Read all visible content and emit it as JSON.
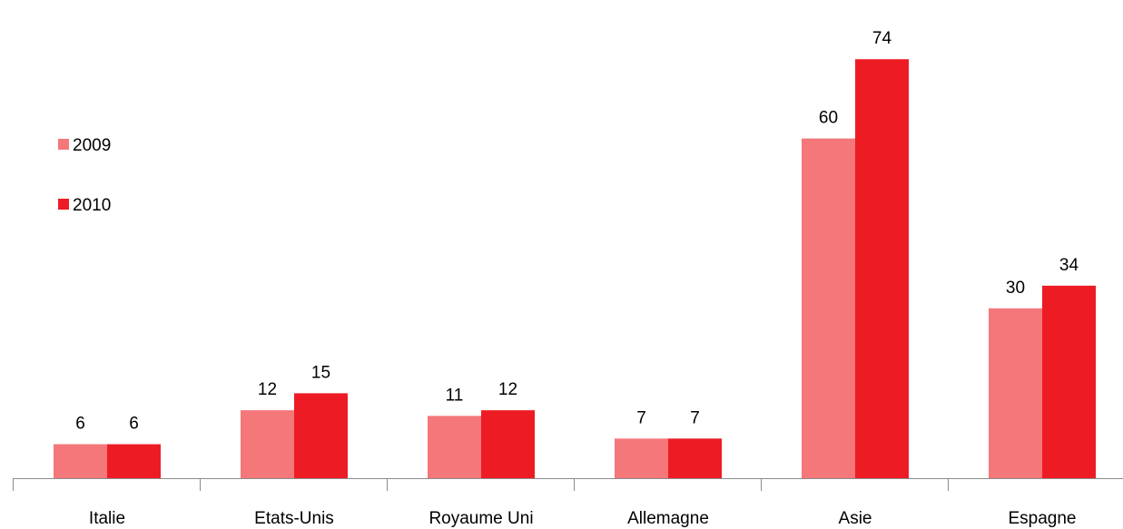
{
  "chart_data": {
    "type": "bar",
    "categories": [
      "Italie",
      "Etats-Unis",
      "Royaume Uni",
      "Allemagne",
      "Asie",
      "Espagne"
    ],
    "series": [
      {
        "name": "2009",
        "values": [
          6,
          12,
          11,
          7,
          60,
          30
        ],
        "color": "#f4777a"
      },
      {
        "name": "2010",
        "values": [
          6,
          15,
          12,
          7,
          74,
          34
        ],
        "color": "#ed1c24"
      }
    ],
    "ylim": [
      0,
      80
    ],
    "grid": false,
    "legend": "left",
    "data_labels": true
  }
}
